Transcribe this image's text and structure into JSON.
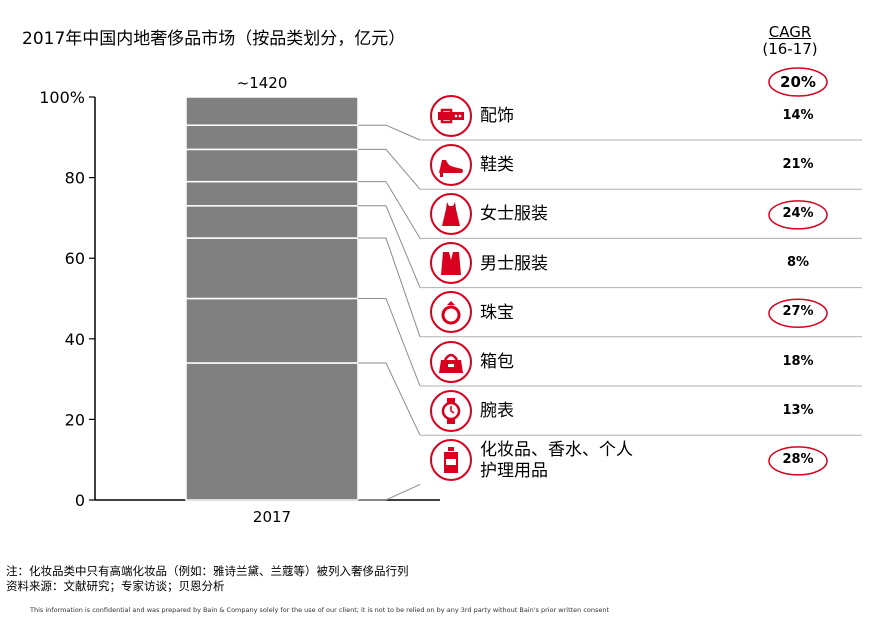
{
  "title": "2017年中国内地奢侈品市场（按品类划分，亿元）",
  "cagr_header": {
    "line1": "CAGR",
    "line2": "(16-17)"
  },
  "total_label": "~1420",
  "total_cagr": "20%",
  "chart_data": {
    "type": "bar",
    "stacked": true,
    "categories": [
      "2017"
    ],
    "ylim": [
      0,
      100
    ],
    "yticks": [
      0,
      20,
      40,
      60,
      80,
      100
    ],
    "ytick_labels": [
      "0",
      "20",
      "40",
      "60",
      "80",
      "100%"
    ],
    "series": [
      {
        "name": "化妆品、香水、个人护理用品",
        "values": [
          34
        ],
        "cagr": "28%",
        "highlight": true,
        "icon": "perfume-bottle-icon"
      },
      {
        "name": "腕表",
        "values": [
          16
        ],
        "cagr": "13%",
        "highlight": false,
        "icon": "watch-icon"
      },
      {
        "name": "箱包",
        "values": [
          15
        ],
        "cagr": "18%",
        "highlight": false,
        "icon": "handbag-icon"
      },
      {
        "name": "珠宝",
        "values": [
          8
        ],
        "cagr": "27%",
        "highlight": true,
        "icon": "ring-icon"
      },
      {
        "name": "男士服装",
        "values": [
          6
        ],
        "cagr": "8%",
        "highlight": false,
        "icon": "suit-icon"
      },
      {
        "name": "女士服装",
        "values": [
          8
        ],
        "cagr": "24%",
        "highlight": true,
        "icon": "dress-icon"
      },
      {
        "name": "鞋类",
        "values": [
          6
        ],
        "cagr": "21%",
        "highlight": false,
        "icon": "shoe-icon"
      },
      {
        "name": "配饰",
        "values": [
          7
        ],
        "cagr": "14%",
        "highlight": false,
        "icon": "belt-icon"
      }
    ],
    "bar_color": "#808080",
    "accent_color": "#d7001e"
  },
  "rows": [
    {
      "label": "配饰",
      "cagr": "14%",
      "icon": "belt-icon",
      "highlight": false
    },
    {
      "label": "鞋类",
      "cagr": "21%",
      "icon": "shoe-icon",
      "highlight": false
    },
    {
      "label": "女士服装",
      "cagr": "24%",
      "icon": "dress-icon",
      "highlight": true
    },
    {
      "label": "男士服装",
      "cagr": "8%",
      "icon": "suit-icon",
      "highlight": false
    },
    {
      "label": "珠宝",
      "cagr": "27%",
      "icon": "ring-icon",
      "highlight": true
    },
    {
      "label": "箱包",
      "cagr": "18%",
      "icon": "handbag-icon",
      "highlight": false
    },
    {
      "label": "腕表",
      "cagr": "13%",
      "icon": "watch-icon",
      "highlight": false
    },
    {
      "label": "化妆品、香水、个人\n护理用品",
      "cagr": "28%",
      "icon": "perfume-bottle-icon",
      "highlight": true
    }
  ],
  "notes": {
    "note": "注：化妆品类中只有高端化妆品（例如：雅诗兰黛、兰蔻等）被列入奢侈品行列",
    "source": "资料来源：文献研究；专家访谈；贝恩分析"
  },
  "footer": "This information is confidential and was prepared by Bain & Company solely for the use of our client; it is not to be relied on by any 3rd party without Bain's prior written consent"
}
